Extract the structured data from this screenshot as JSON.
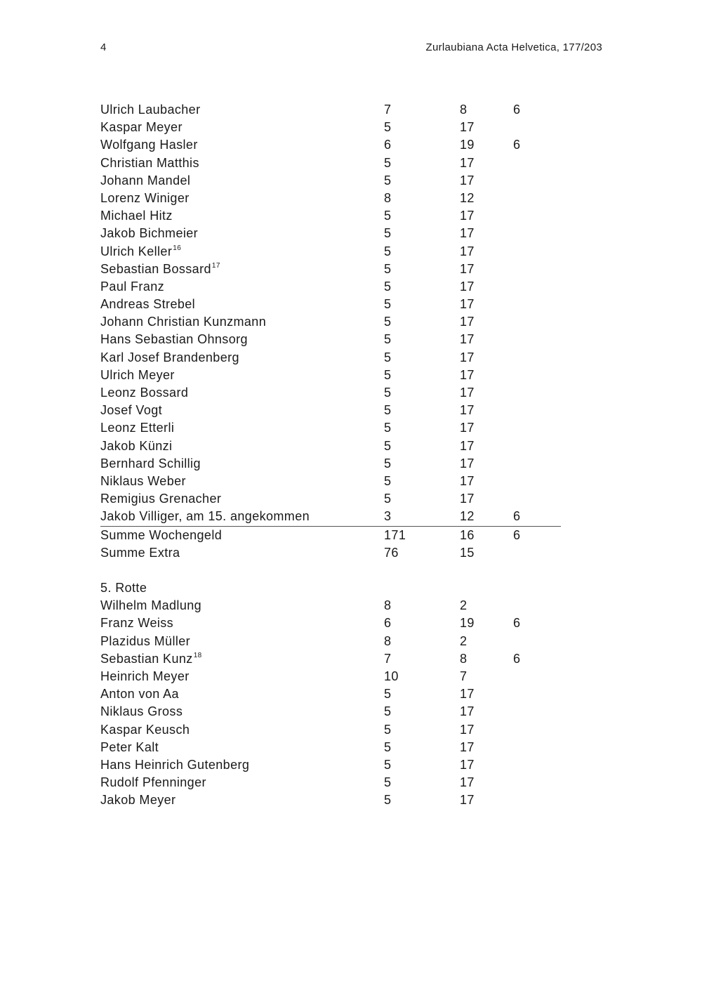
{
  "header": {
    "page_number": "4",
    "running_title": "Zurlaubiana Acta Helvetica, 177/203"
  },
  "rows": [
    {
      "name": "Ulrich Laubacher",
      "a": "7",
      "b": "8",
      "c": "6"
    },
    {
      "name": "Kaspar Meyer",
      "a": "5",
      "b": "17",
      "c": ""
    },
    {
      "name": "Wolfgang Hasler",
      "a": "6",
      "b": "19",
      "c": "6"
    },
    {
      "name": "Christian Matthis",
      "a": "5",
      "b": "17",
      "c": ""
    },
    {
      "name": "Johann Mandel",
      "a": "5",
      "b": "17",
      "c": ""
    },
    {
      "name": "Lorenz Winiger",
      "a": "8",
      "b": "12",
      "c": ""
    },
    {
      "name": "Michael Hitz",
      "a": "5",
      "b": "17",
      "c": ""
    },
    {
      "name": "Jakob Bichmeier",
      "a": "5",
      "b": "17",
      "c": ""
    },
    {
      "name": "Ulrich Keller",
      "note": "16",
      "a": "5",
      "b": "17",
      "c": ""
    },
    {
      "name": "Sebastian Bossard",
      "note": "17",
      "a": "5",
      "b": "17",
      "c": ""
    },
    {
      "name": "Paul Franz",
      "a": "5",
      "b": "17",
      "c": ""
    },
    {
      "name": "Andreas Strebel",
      "a": "5",
      "b": "17",
      "c": ""
    },
    {
      "name": "Johann Christian Kunzmann",
      "a": "5",
      "b": "17",
      "c": ""
    },
    {
      "name": "Hans Sebastian Ohnsorg",
      "a": "5",
      "b": "17",
      "c": ""
    },
    {
      "name": "Karl Josef Brandenberg",
      "a": "5",
      "b": "17",
      "c": ""
    },
    {
      "name": "Ulrich Meyer",
      "a": "5",
      "b": "17",
      "c": ""
    },
    {
      "name": "Leonz Bossard",
      "a": "5",
      "b": "17",
      "c": ""
    },
    {
      "name": "Josef Vogt",
      "a": "5",
      "b": "17",
      "c": ""
    },
    {
      "name": "Leonz Etterli",
      "a": "5",
      "b": "17",
      "c": ""
    },
    {
      "name": "Jakob Künzi",
      "a": "5",
      "b": "17",
      "c": ""
    },
    {
      "name": "Bernhard Schillig",
      "a": "5",
      "b": "17",
      "c": ""
    },
    {
      "name": "Niklaus Weber",
      "a": "5",
      "b": "17",
      "c": ""
    },
    {
      "name": "Remigius Grenacher",
      "a": "5",
      "b": "17",
      "c": ""
    },
    {
      "name": "Jakob Villiger, am 15. angekommen",
      "a": "3",
      "b": "12",
      "c": "6",
      "rule": true
    },
    {
      "name": "Summe Wochengeld",
      "a": "171",
      "b": "16",
      "c": "6"
    },
    {
      "name": "Summe Extra",
      "a": "76",
      "b": "15",
      "c": ""
    },
    {
      "name": "",
      "a": "",
      "b": "",
      "c": ""
    },
    {
      "name": "5. Rotte",
      "a": "",
      "b": "",
      "c": ""
    },
    {
      "name": "Wilhelm Madlung",
      "a": "8",
      "b": "2",
      "c": ""
    },
    {
      "name": "Franz Weiss",
      "a": "6",
      "b": "19",
      "c": "6"
    },
    {
      "name": "Plazidus Müller",
      "a": "8",
      "b": "2",
      "c": ""
    },
    {
      "name": "Sebastian Kunz",
      "note": "18",
      "a": "7",
      "b": "8",
      "c": "6"
    },
    {
      "name": "Heinrich Meyer",
      "a": "10",
      "b": "7",
      "c": ""
    },
    {
      "name": "Anton von Aa",
      "a": "5",
      "b": "17",
      "c": ""
    },
    {
      "name": "Niklaus Gross",
      "a": "5",
      "b": "17",
      "c": ""
    },
    {
      "name": "Kaspar Keusch",
      "a": "5",
      "b": "17",
      "c": ""
    },
    {
      "name": "Peter Kalt",
      "a": "5",
      "b": "17",
      "c": ""
    },
    {
      "name": "Hans Heinrich Gutenberg",
      "a": "5",
      "b": "17",
      "c": ""
    },
    {
      "name": "Rudolf Pfenninger",
      "a": "5",
      "b": "17",
      "c": ""
    },
    {
      "name": "Jakob Meyer",
      "a": "5",
      "b": "17",
      "c": ""
    }
  ]
}
